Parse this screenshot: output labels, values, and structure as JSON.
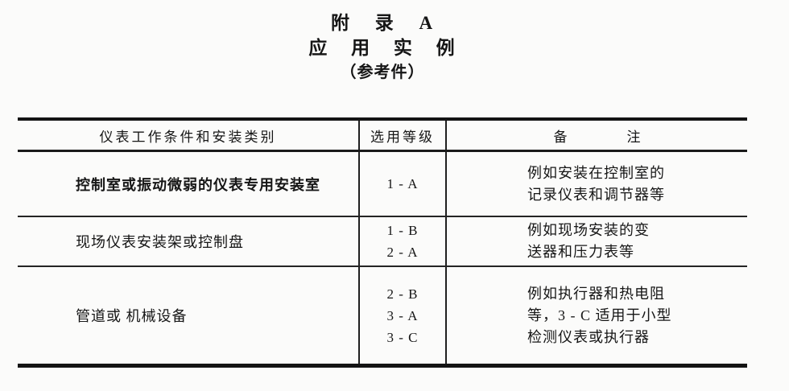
{
  "titles": {
    "line1": "附 录 A",
    "line2": "应 用 实 例",
    "line3": "（参考件）"
  },
  "table": {
    "header": {
      "condition": "仪表工作条件和安装类别",
      "grade": "选用等级",
      "notes_left": "备",
      "notes_right": "注"
    },
    "rows": [
      {
        "condition": "控制室或振动微弱的仪表专用安装室",
        "grades": [
          "1 - A"
        ],
        "notes": [
          "例如安装在控制室的",
          "记录仪表和调节器等"
        ]
      },
      {
        "condition": "现场仪表安装架或控制盘",
        "grades": [
          "1 - B",
          "2 - A"
        ],
        "notes": [
          "例如现场安装的变",
          "送器和压力表等"
        ]
      },
      {
        "condition": "管道或 机械设备",
        "grades": [
          "2 - B",
          "3 - A",
          "3 - C"
        ],
        "notes": [
          "例如执行器和热电阻",
          "等，3 - C 适用于小型",
          "检测仪表或执行器"
        ]
      }
    ]
  },
  "colors": {
    "ink": "#1a1a1a",
    "paper": "#fbfbfa"
  }
}
